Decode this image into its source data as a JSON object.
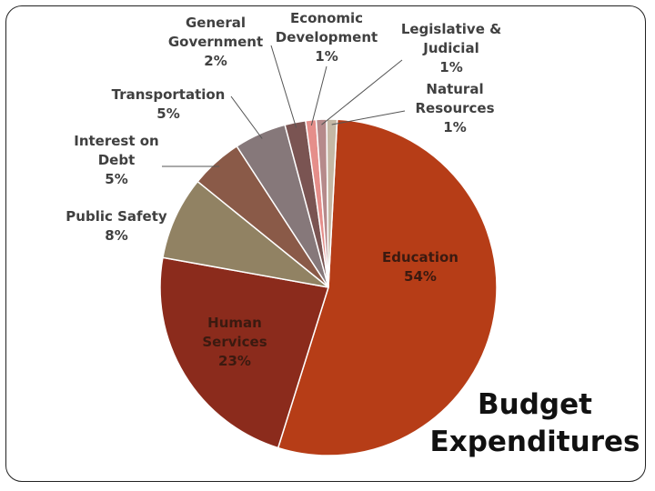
{
  "chart_data": {
    "type": "pie",
    "title": "Budget Expenditures",
    "title_lines": [
      "Budget",
      "Expenditures"
    ],
    "slices": [
      {
        "name": "Education",
        "name_lines": [
          "Education"
        ],
        "pct_label": "54%",
        "value": 54,
        "color": "#b63d17"
      },
      {
        "name": "Human Services",
        "name_lines": [
          "Human",
          "Services"
        ],
        "pct_label": "23%",
        "value": 23,
        "color": "#8b2b1c"
      },
      {
        "name": "Public Safety",
        "name_lines": [
          "Public Safety"
        ],
        "pct_label": "8%",
        "value": 8,
        "color": "#918263"
      },
      {
        "name": "Interest on Debt",
        "name_lines": [
          "Interest on",
          "Debt"
        ],
        "pct_label": "5%",
        "value": 5,
        "color": "#8a5a48"
      },
      {
        "name": "Transportation",
        "name_lines": [
          "Transportation"
        ],
        "pct_label": "5%",
        "value": 5,
        "color": "#86787a"
      },
      {
        "name": "General Government",
        "name_lines": [
          "General",
          "Government"
        ],
        "pct_label": "2%",
        "value": 2,
        "color": "#7a5452"
      },
      {
        "name": "Economic Development",
        "name_lines": [
          "Economic",
          "Development"
        ],
        "pct_label": "1%",
        "value": 1,
        "color": "#e58e8a"
      },
      {
        "name": "Legislative & Judicial",
        "name_lines": [
          "Legislative &",
          "Judicial"
        ],
        "pct_label": "1%",
        "value": 1,
        "color": "#b68a8b"
      },
      {
        "name": "Natural Resources",
        "name_lines": [
          "Natural",
          "Resources"
        ],
        "pct_label": "1%",
        "value": 1,
        "color": "#c5b8a5"
      }
    ]
  }
}
